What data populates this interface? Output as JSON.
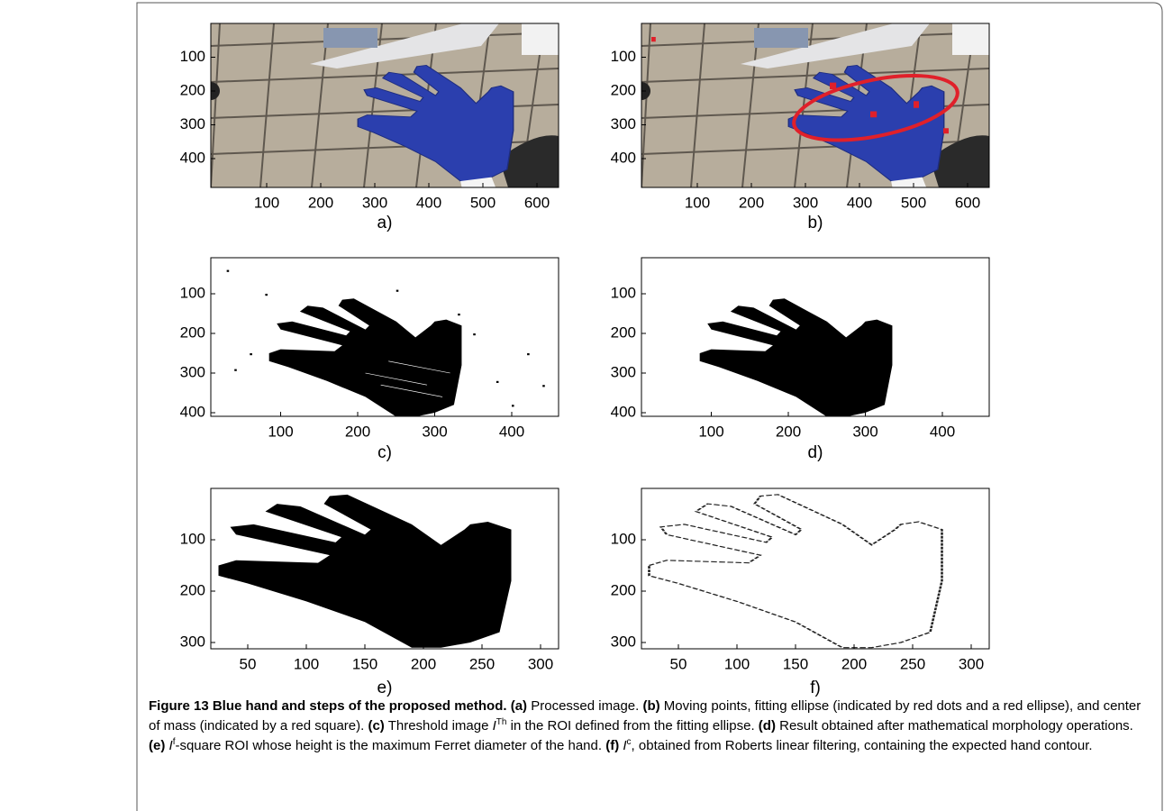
{
  "figure": {
    "panels": [
      {
        "label": "a)",
        "xticks": [
          100,
          200,
          300,
          400,
          500,
          600
        ],
        "yticks": [
          100,
          200,
          300,
          400
        ]
      },
      {
        "label": "b)",
        "xticks": [
          100,
          200,
          300,
          400,
          500,
          600
        ],
        "yticks": [
          100,
          200,
          300,
          400
        ]
      },
      {
        "label": "c)",
        "xticks": [
          100,
          200,
          300,
          400
        ],
        "yticks": [
          100,
          200,
          300,
          400
        ]
      },
      {
        "label": "d)",
        "xticks": [
          100,
          200,
          300,
          400
        ],
        "yticks": [
          100,
          200,
          300,
          400
        ]
      },
      {
        "label": "e)",
        "xticks": [
          50,
          100,
          150,
          200,
          250,
          300
        ],
        "yticks": [
          100,
          200,
          300
        ]
      },
      {
        "label": "f)",
        "xticks": [
          50,
          100,
          150,
          200,
          250,
          300
        ],
        "yticks": [
          100,
          200,
          300
        ]
      }
    ],
    "caption": {
      "title": "Figure 13 Blue hand and steps of the proposed method.",
      "items": [
        {
          "label": "(a)",
          "parts": [
            "Processed image."
          ]
        },
        {
          "label": "(b)",
          "parts": [
            "Moving points, fitting ellipse (indicated by red dots and a red ellipse), and center of mass (indicated by a red square)."
          ]
        },
        {
          "label": "(c)",
          "parts": [
            "Threshold image ",
            "I",
            "Th",
            " in the ROI defined from the fitting ellipse."
          ]
        },
        {
          "label": "(d)",
          "parts": [
            "Result obtained after mathematical morphology operations."
          ]
        },
        {
          "label": "(e)",
          "parts": [
            "I",
            "f",
            "-square ROI whose height is the maximum Ferret diameter of the hand."
          ]
        },
        {
          "label": "(f)",
          "parts": [
            "I",
            "c",
            ", obtained from Roberts linear filtering, containing the expected hand contour."
          ]
        }
      ]
    }
  }
}
